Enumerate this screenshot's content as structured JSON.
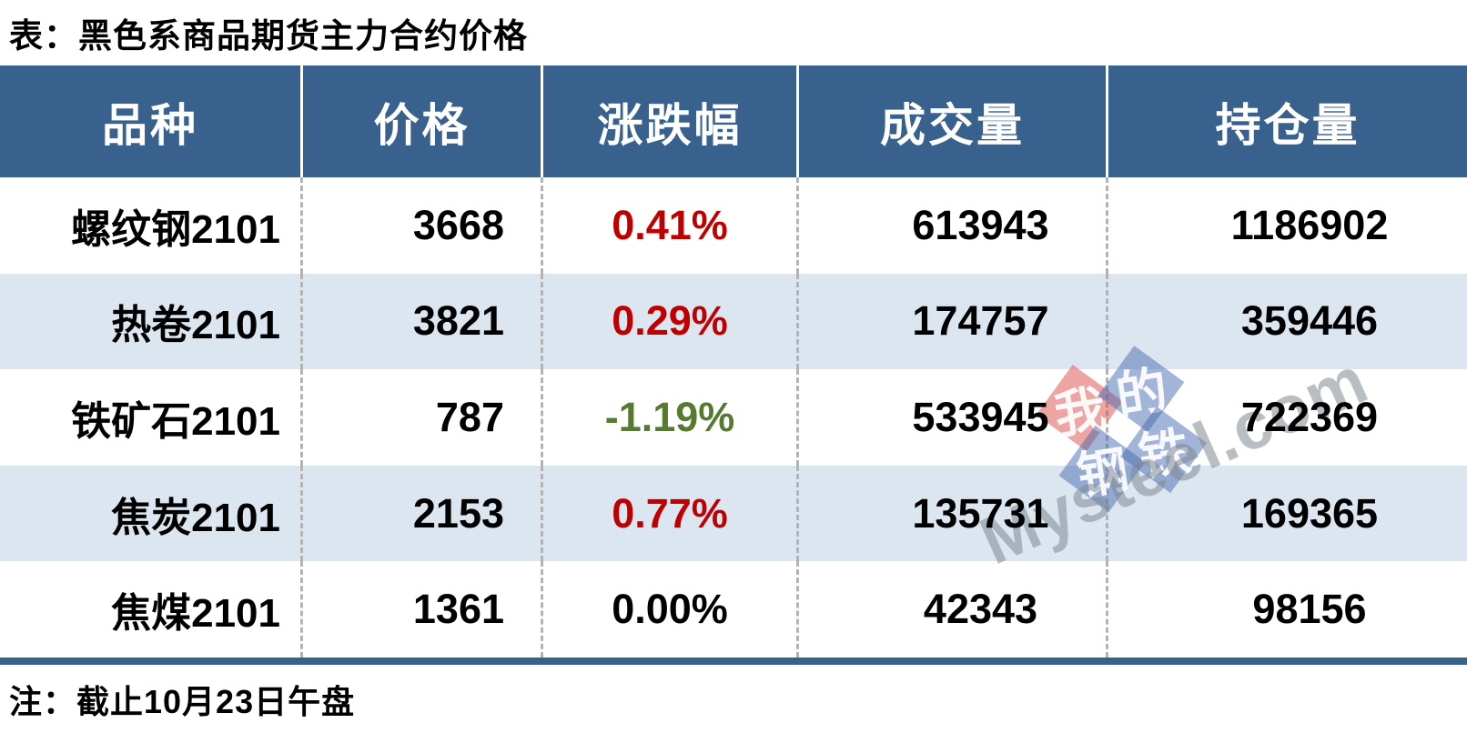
{
  "title": "表：黑色系商品期货主力合约价格",
  "note": "注：截止10月23日午盘",
  "table": {
    "headers": [
      "品种",
      "价格",
      "涨跌幅",
      "成交量",
      "持仓量"
    ],
    "rows": [
      {
        "name": "螺纹钢2101",
        "price": "3668",
        "change": "0.41%",
        "change_color": "#c00000",
        "volume": "613943",
        "open_interest": "1186902"
      },
      {
        "name": "热卷2101",
        "price": "3821",
        "change": "0.29%",
        "change_color": "#c00000",
        "volume": "174757",
        "open_interest": "359446"
      },
      {
        "name": "铁矿石2101",
        "price": "787",
        "change": "-1.19%",
        "change_color": "#567a2e",
        "volume": "533945",
        "open_interest": "722369"
      },
      {
        "name": "焦炭2101",
        "price": "2153",
        "change": "0.77%",
        "change_color": "#c00000",
        "volume": "135731",
        "open_interest": "169365"
      },
      {
        "name": "焦煤2101",
        "price": "1361",
        "change": "0.00%",
        "change_color": "#000000",
        "volume": "42343",
        "open_interest": "98156"
      }
    ]
  },
  "colors": {
    "header_bg": "#38618e",
    "row_alt_bg": "#dce6f1",
    "up_red": "#c00000",
    "down_green": "#567a2e",
    "tile_red": "rgba(217,75,70,0.5)",
    "tile_blue": "rgba(70,105,175,0.5)"
  },
  "watermark": {
    "tiles": [
      {
        "char": "我"
      },
      {
        "char": "的"
      },
      {
        "char": "钢"
      },
      {
        "char": "铁"
      }
    ],
    "site": "Mysteel.com"
  }
}
